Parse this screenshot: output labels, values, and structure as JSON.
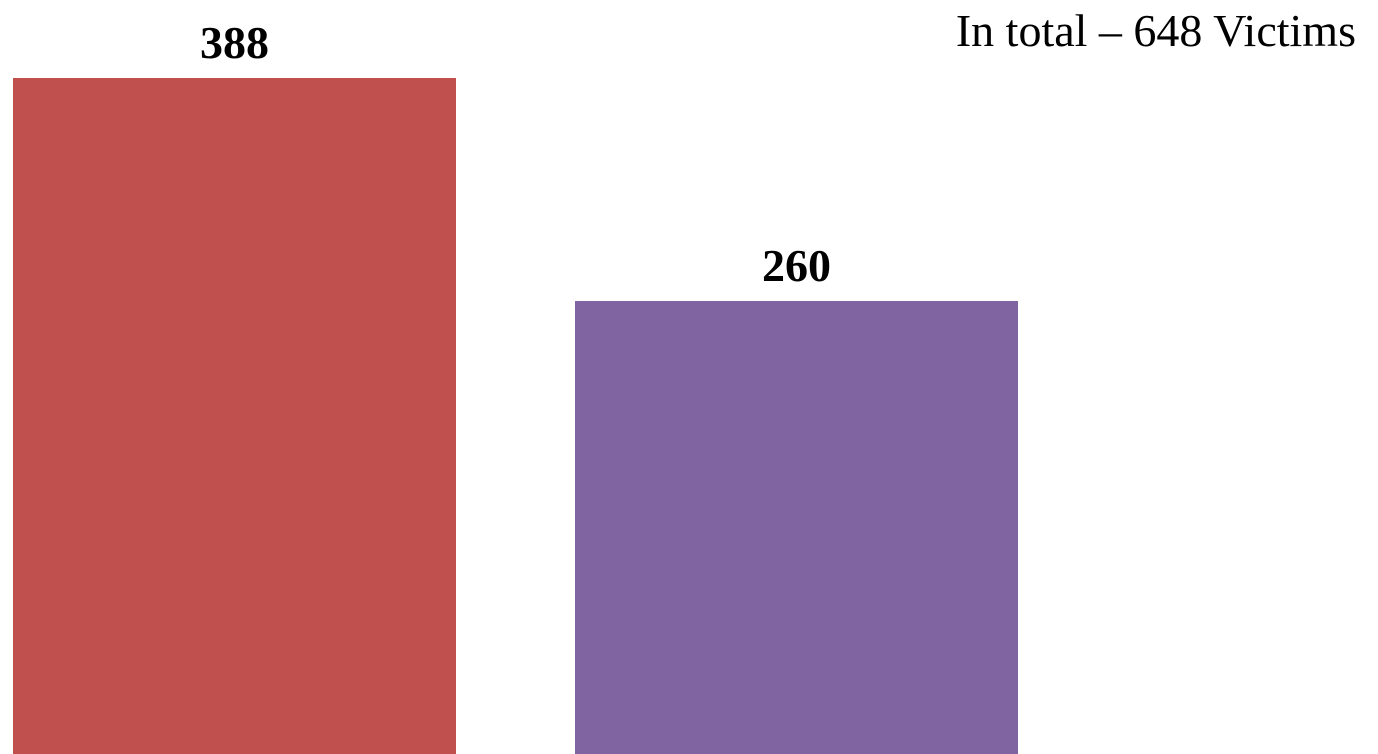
{
  "chart_data": {
    "type": "bar",
    "title": "In total – 648 Victims",
    "categories": [
      "",
      ""
    ],
    "values": [
      388,
      260
    ],
    "colors": [
      "#C0504D",
      "#8064A2"
    ],
    "data_labels": [
      "388",
      "260"
    ],
    "grid": false,
    "legend": "none",
    "axes_visible": false
  }
}
